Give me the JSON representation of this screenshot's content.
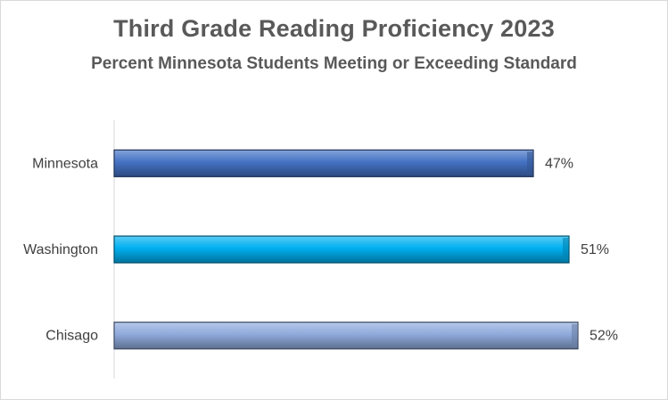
{
  "chart_data": {
    "type": "bar",
    "orientation": "horizontal",
    "title": "Third Grade Reading Proficiency 2023",
    "subtitle": "Percent Minnesota Students Meeting or Exceeding Standard",
    "categories": [
      "Minnesota",
      "Washington",
      "Chisago"
    ],
    "values": [
      47,
      51,
      52
    ],
    "value_labels": [
      "47%",
      "51%",
      "52%"
    ],
    "xlim": [
      0,
      60
    ],
    "grid": false,
    "legend": "none",
    "bar_colors": [
      "#4472c4",
      "#00b0f0",
      "#8faadc"
    ]
  }
}
